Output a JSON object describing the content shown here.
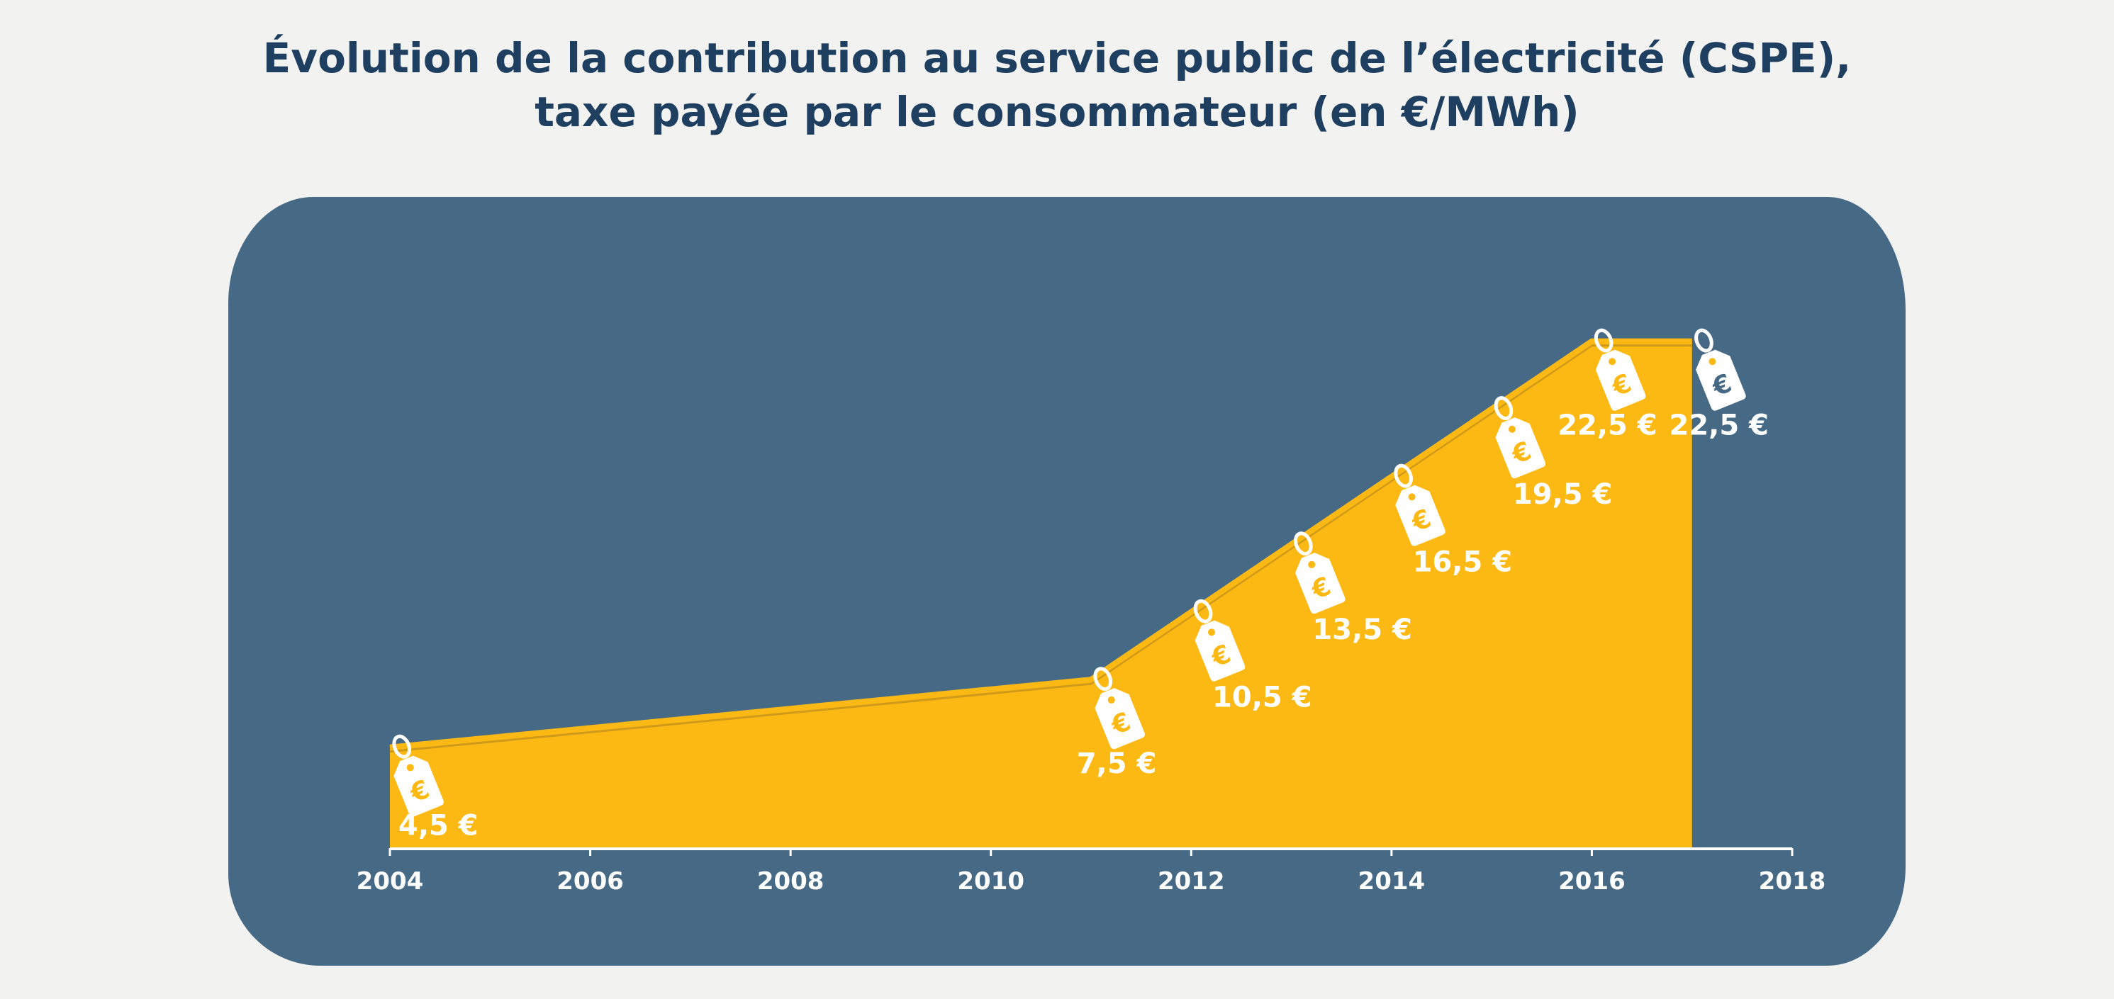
{
  "chart_data": {
    "type": "area",
    "title_lines": [
      "Évolution de la contribution au service public de l’électricité (CSPE),",
      "taxe payée par le consommateur (en €/MWh)"
    ],
    "xlabel": "",
    "ylabel": "",
    "x_ticks": [
      "2004",
      "2006",
      "2008",
      "2010",
      "2012",
      "2014",
      "2016",
      "2018"
    ],
    "xlim": [
      2004,
      2018
    ],
    "ylim": [
      0,
      25
    ],
    "grid": false,
    "legend": "none",
    "series": [
      {
        "x": [
          2004,
          2011,
          2012,
          2013,
          2014,
          2015,
          2016,
          2017
        ],
        "values": [
          4.5,
          7.5,
          10.5,
          13.5,
          16.5,
          19.5,
          22.5,
          22.5
        ],
        "labels": [
          "4,5 €",
          "7,5 €",
          "10,5 €",
          "13,5 €",
          "16,5 €",
          "19,5 €",
          "22,5 €",
          "22,5 €"
        ]
      }
    ],
    "colors": {
      "area": "#fdb913",
      "line": "#cf9a1a",
      "panel": "#466985",
      "title": "#1f3f60",
      "background": "#f2f2f1"
    },
    "marker_icon": "euro-price-tag-icon",
    "marker_symbol": "€"
  }
}
